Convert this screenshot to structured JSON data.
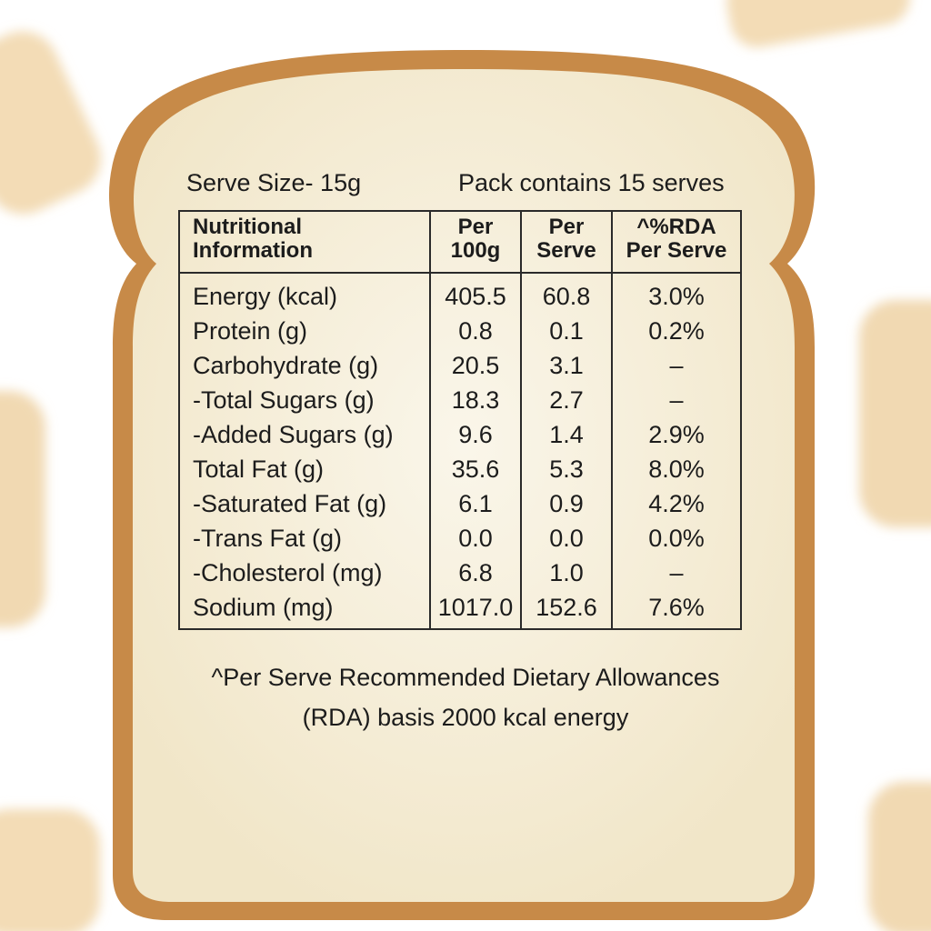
{
  "serve_size": "Serve Size- 15g",
  "pack_info": "Pack contains 15 serves",
  "table": {
    "header": [
      [
        "Nutritional",
        "Information"
      ],
      [
        "Per",
        "100g"
      ],
      [
        "Per",
        "Serve"
      ],
      [
        "^%RDA",
        "Per Serve"
      ]
    ],
    "rows": [
      [
        "Energy (kcal)",
        "405.5",
        "60.8",
        "3.0%"
      ],
      [
        "Protein (g)",
        "0.8",
        "0.1",
        "0.2%"
      ],
      [
        "Carbohydrate (g)",
        "20.5",
        "3.1",
        "–"
      ],
      [
        "-Total Sugars (g)",
        "18.3",
        "2.7",
        "–"
      ],
      [
        "-Added Sugars (g)",
        "9.6",
        "1.4",
        "2.9%"
      ],
      [
        "Total Fat (g)",
        "35.6",
        "5.3",
        "8.0%"
      ],
      [
        "-Saturated Fat (g)",
        "6.1",
        "0.9",
        "4.2%"
      ],
      [
        "-Trans Fat (g)",
        "0.0",
        "0.0",
        "0.0%"
      ],
      [
        "-Cholesterol (mg)",
        "6.8",
        "1.0",
        "–"
      ],
      [
        "Sodium (mg)",
        "1017.0",
        "152.6",
        "7.6%"
      ]
    ]
  },
  "footnote": [
    "^Per Serve Recommended Dietary Allowances",
    "(RDA) basis 2000 kcal energy"
  ]
}
